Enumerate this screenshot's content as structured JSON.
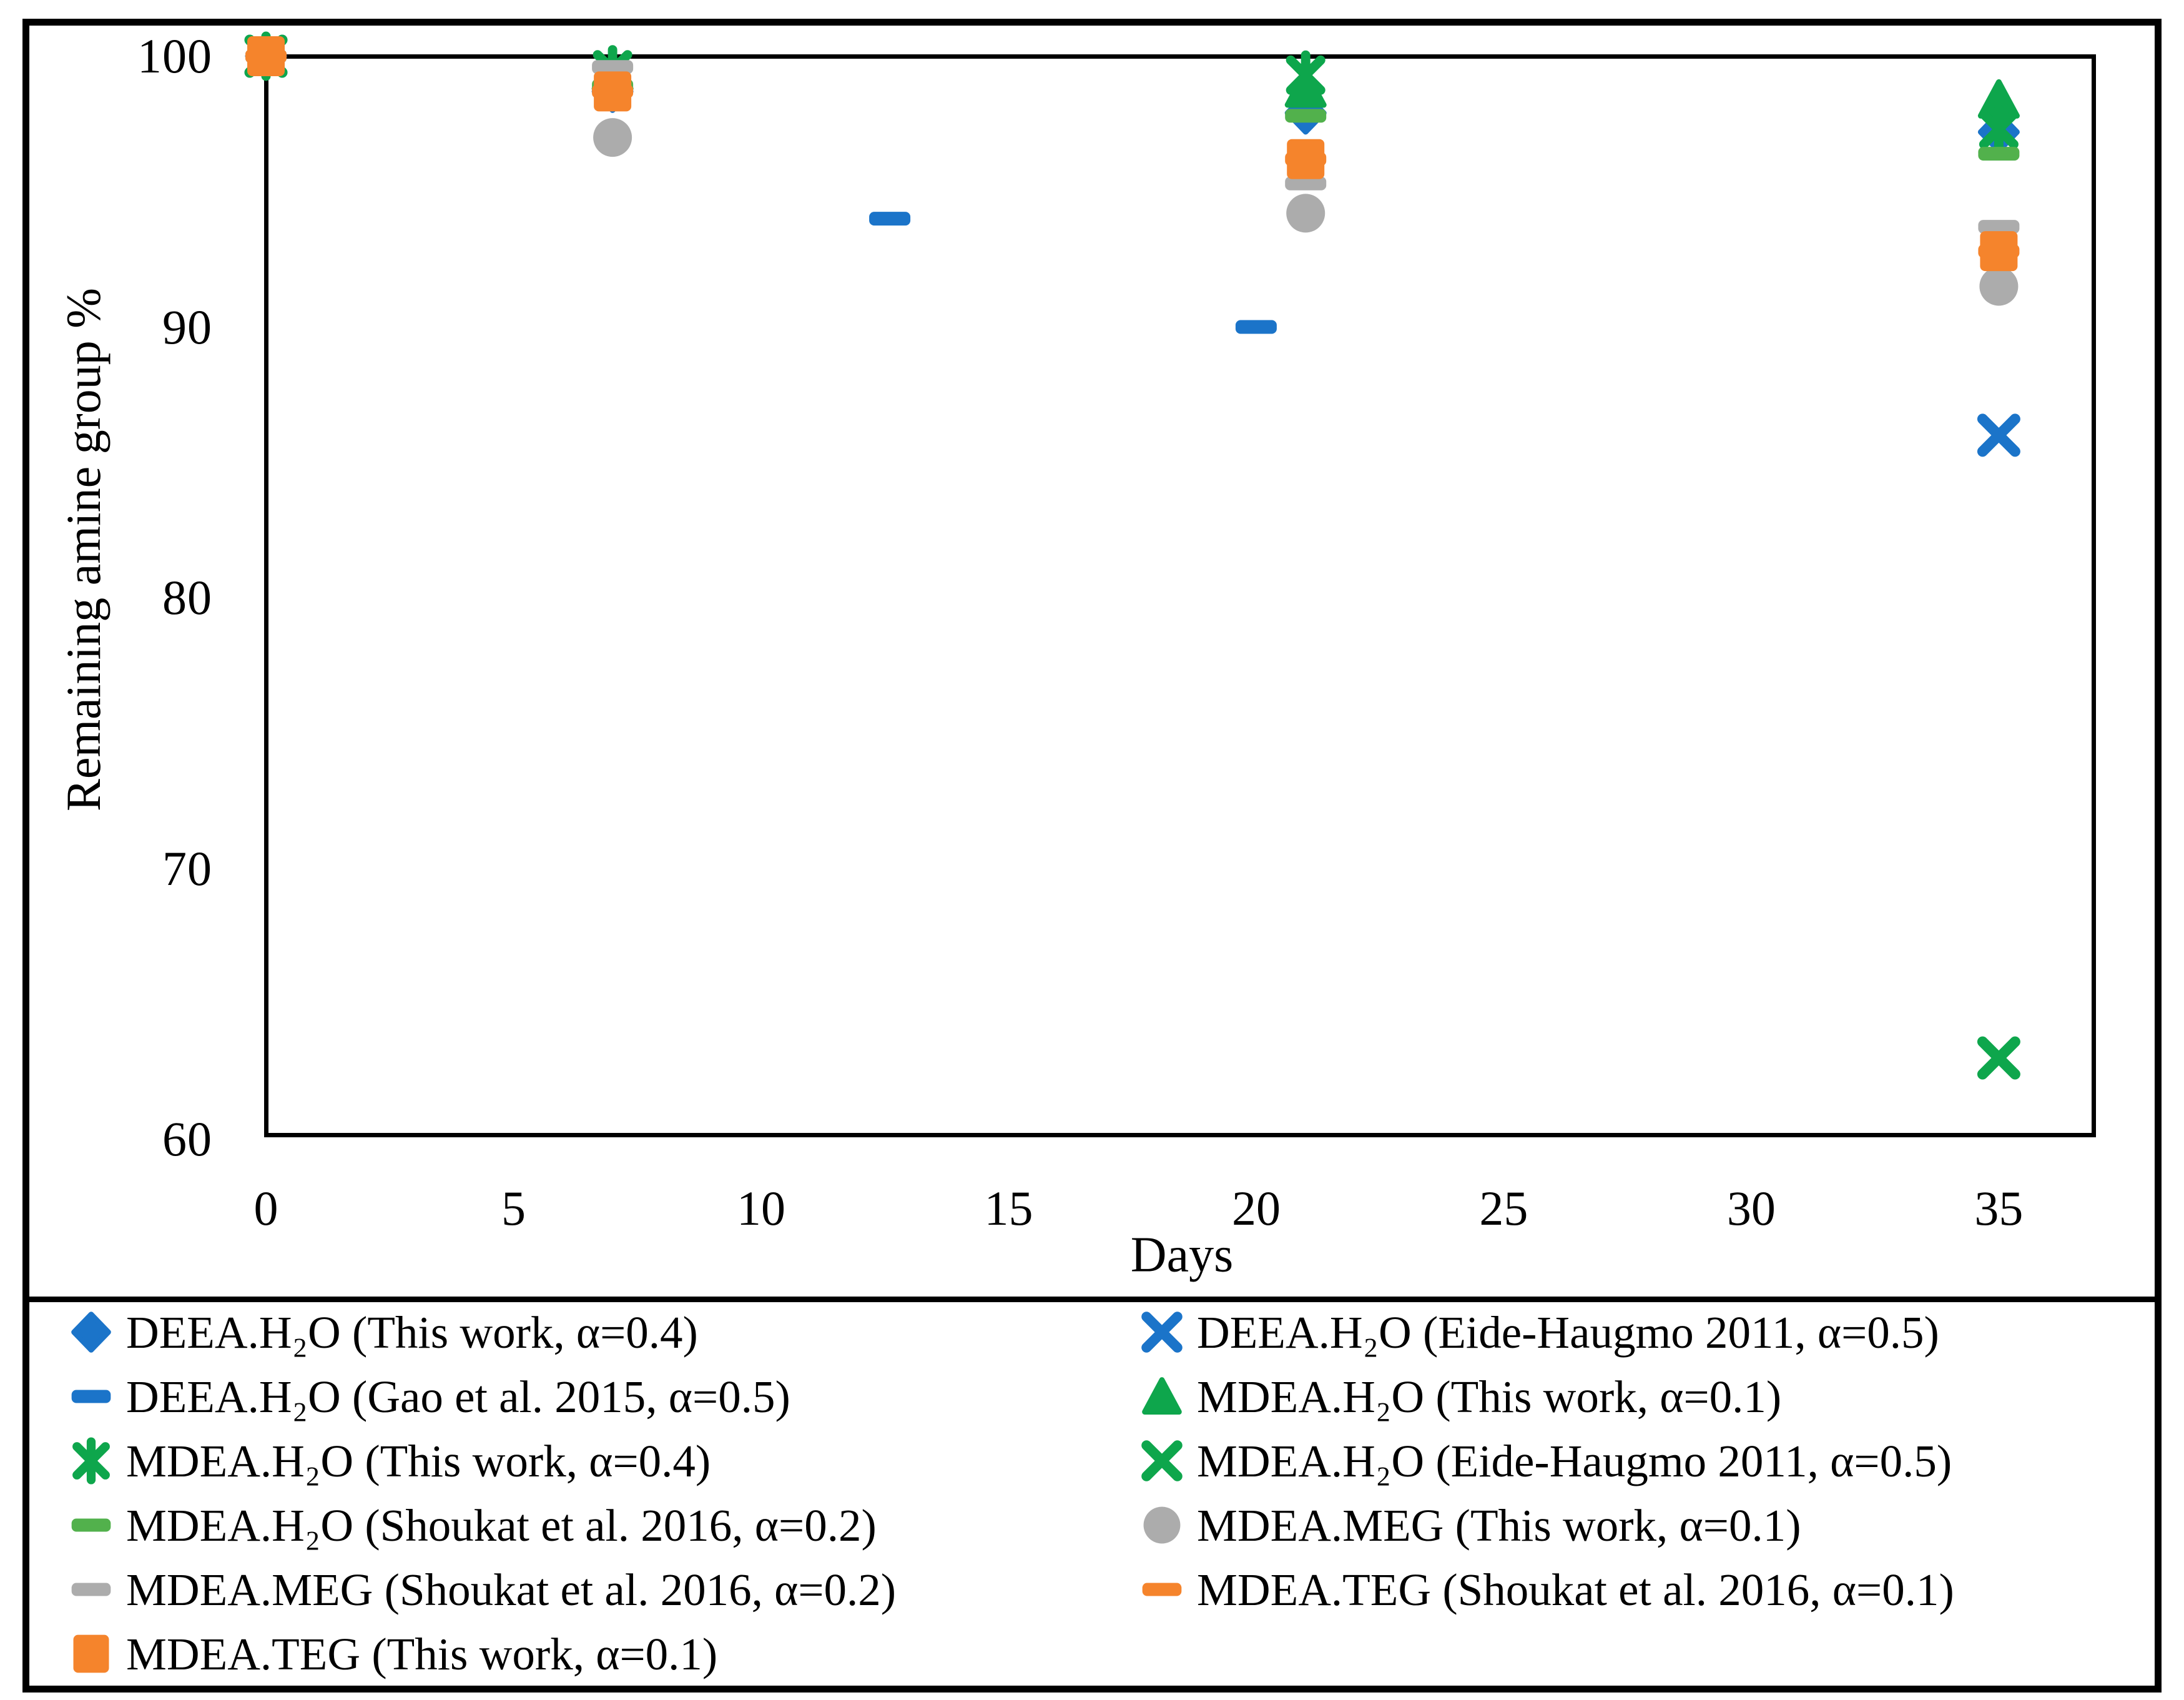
{
  "chart_data": {
    "type": "scatter",
    "title": "",
    "xlabel": "Days",
    "ylabel": "Remaining amine group %",
    "xlim": [
      0,
      37
    ],
    "ylim": [
      60,
      100
    ],
    "x_ticks": [
      0,
      5,
      10,
      15,
      20,
      25,
      30,
      35
    ],
    "y_ticks": [
      100,
      90,
      80,
      70,
      60
    ],
    "grid": false,
    "legend_position": "bottom-two-columns",
    "colors": {
      "blue": "#1B74C9",
      "green": "#0EA64C",
      "light_green": "#52B14C",
      "gray": "#ACACAC",
      "orange": "#F5842C",
      "axis": "#000000",
      "background": "#FFFFFF"
    },
    "series": [
      {
        "name": "DEEA.H₂O (This work, α=0.4)",
        "marker": "diamond",
        "color": "#1B74C9",
        "points": [
          [
            0,
            100
          ],
          [
            7,
            98.7
          ],
          [
            21,
            97.9
          ],
          [
            35,
            97.2
          ]
        ]
      },
      {
        "name": "DEEA.H₂O (Eide-Haugmo 2011, α=0.5)",
        "marker": "x",
        "color": "#1B74C9",
        "points": [
          [
            0,
            100
          ],
          [
            35,
            86
          ]
        ]
      },
      {
        "name": "DEEA.H₂O (Gao et al. 2015, α=0.5)",
        "marker": "dash",
        "color": "#1B74C9",
        "points": [
          [
            0,
            100
          ],
          [
            12.6,
            94
          ],
          [
            20,
            90
          ]
        ]
      },
      {
        "name": "MDEA.H₂O (This work, α=0.1)",
        "marker": "triangle",
        "color": "#0EA64C",
        "points": [
          [
            0,
            100
          ],
          [
            7,
            99.4
          ],
          [
            21,
            98.8
          ],
          [
            35,
            98.4
          ]
        ]
      },
      {
        "name": "MDEA.H₂O (This work, α=0.4)",
        "marker": "star",
        "color": "#0EA64C",
        "points": [
          [
            0,
            100
          ],
          [
            7,
            99.5
          ],
          [
            21,
            99.3
          ],
          [
            35,
            97.3
          ]
        ]
      },
      {
        "name": "MDEA.H₂O  (Eide-Haugmo 2011, α=0.5)",
        "marker": "x",
        "color": "#0EA64C",
        "points": [
          [
            0,
            100
          ],
          [
            35,
            63
          ]
        ]
      },
      {
        "name": "MDEA.H₂O (Shoukat et al. 2016, α=0.2)",
        "marker": "dash",
        "color": "#52B14C",
        "points": [
          [
            0,
            100
          ],
          [
            7,
            98.9
          ],
          [
            21,
            97.8
          ],
          [
            35,
            96.4
          ]
        ]
      },
      {
        "name": "MDEA.MEG (This work, α=0.1)",
        "marker": "circle",
        "color": "#ACACAC",
        "points": [
          [
            0,
            100
          ],
          [
            7,
            97.0
          ],
          [
            21,
            94.2
          ],
          [
            35,
            91.5
          ]
        ]
      },
      {
        "name": "MDEA.MEG (Shoukat et al. 2016, α=0.2)",
        "marker": "dash",
        "color": "#ACACAC",
        "points": [
          [
            0,
            100
          ],
          [
            7,
            99.6
          ],
          [
            21,
            95.3
          ],
          [
            35,
            93.7
          ]
        ]
      },
      {
        "name": "MDEA.TEG (Shoukat et al. 2016, α=0.1)",
        "marker": "dash",
        "color": "#F5842C",
        "points": [
          [
            0,
            100
          ],
          [
            7,
            98.7
          ],
          [
            21,
            96.2
          ],
          [
            35,
            92.8
          ]
        ]
      },
      {
        "name": "MDEA.TEG (This work, α=0.1)",
        "marker": "square",
        "color": "#F5842C",
        "points": [
          [
            0,
            100
          ],
          [
            7,
            98.7
          ],
          [
            21,
            96.2
          ],
          [
            35,
            92.8
          ]
        ]
      }
    ],
    "legend_layout": {
      "left_column_series": [
        0,
        2,
        4,
        6,
        8,
        10
      ],
      "right_column_series": [
        1,
        3,
        5,
        7,
        9
      ]
    }
  }
}
